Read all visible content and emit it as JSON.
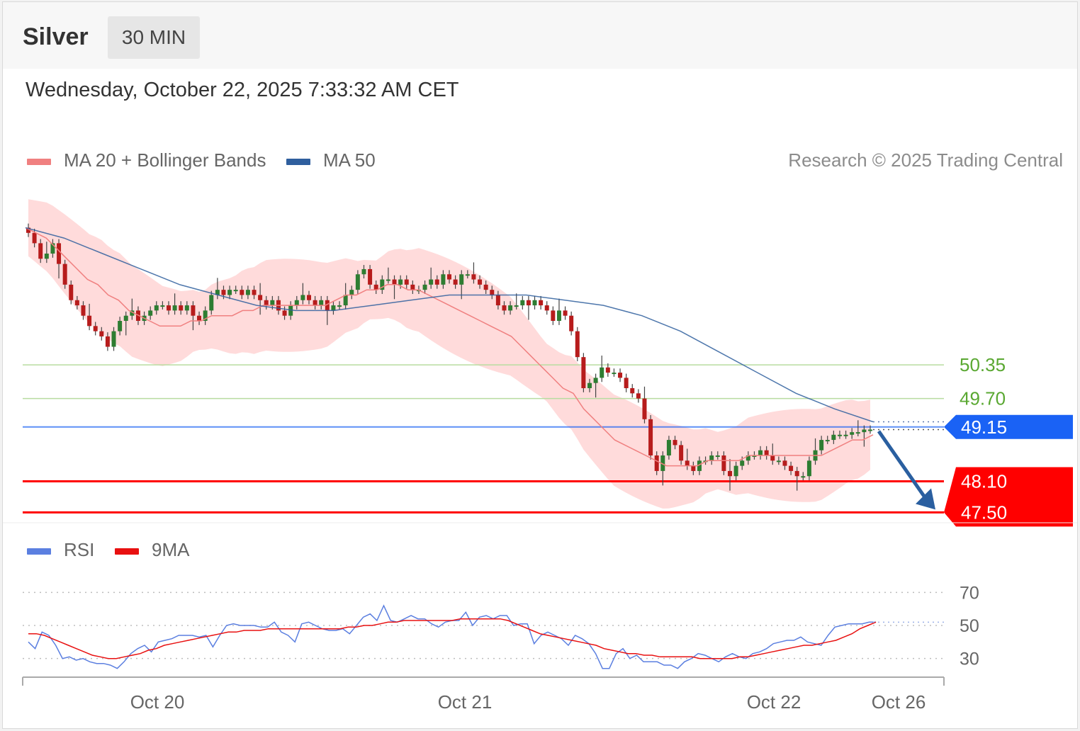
{
  "header": {
    "instrument": "Silver",
    "timeframe": "30 MIN"
  },
  "timestamp": "Wednesday, October 22, 2025 7:33:32 AM CET",
  "legend": {
    "ma20": {
      "label": "MA 20 + Bollinger Bands",
      "color": "#f08080"
    },
    "ma50": {
      "label": "MA 50",
      "color": "#2f5f9e"
    }
  },
  "copyright": "Research © 2025 Trading Central",
  "rsi_legend": {
    "rsi": {
      "label": "RSI",
      "color": "#5b7fe0"
    },
    "ma9": {
      "label": "9MA",
      "color": "#e81010"
    }
  },
  "colors": {
    "up": "#2e7d32",
    "down": "#b71c1c",
    "band": "#ffcccc",
    "pivot": "#1a62f5",
    "resistance_line": "#b8dca0",
    "resistance_text": "#5aa832",
    "support": "#ff0000",
    "arrow": "#2a5fa0"
  },
  "chart_data": [
    {
      "type": "candlestick",
      "ylim": [
        47.3,
        53.8
      ],
      "x_ticks": [
        "Oct 20",
        "Oct 21",
        "Oct 22",
        "Oct 26"
      ],
      "levels": [
        {
          "value": 50.35,
          "label": "50.35",
          "kind": "resistance"
        },
        {
          "value": 49.7,
          "label": "49.70",
          "kind": "resistance"
        },
        {
          "value": 49.15,
          "label": "49.15",
          "kind": "pivot"
        },
        {
          "value": 48.1,
          "label": "48.10",
          "kind": "support"
        },
        {
          "value": 47.5,
          "label": "47.50",
          "kind": "support"
        }
      ],
      "close_path": [
        52.9,
        52.7,
        52.4,
        52.5,
        52.7,
        52.3,
        51.9,
        51.6,
        51.5,
        51.3,
        51.1,
        51.0,
        50.9,
        50.7,
        51.0,
        51.2,
        51.3,
        51.4,
        51.2,
        51.3,
        51.4,
        51.5,
        51.5,
        51.4,
        51.5,
        51.4,
        51.5,
        51.3,
        51.2,
        51.4,
        51.7,
        51.8,
        51.7,
        51.8,
        51.8,
        51.7,
        51.8,
        51.7,
        51.6,
        51.5,
        51.6,
        51.4,
        51.3,
        51.5,
        51.6,
        51.7,
        51.6,
        51.5,
        51.6,
        51.4,
        51.5,
        51.5,
        51.7,
        51.8,
        52.1,
        52.2,
        51.9,
        51.8,
        52.0,
        52.0,
        51.9,
        52.0,
        51.9,
        51.8,
        51.8,
        51.9,
        52.0,
        51.9,
        52.1,
        52.0,
        51.9,
        52.1,
        52.1,
        52.0,
        51.9,
        51.8,
        51.7,
        51.5,
        51.4,
        51.5,
        51.5,
        51.6,
        51.5,
        51.6,
        51.5,
        51.4,
        51.2,
        51.4,
        51.3,
        51.0,
        50.5,
        49.9,
        50.0,
        50.1,
        50.3,
        50.2,
        50.2,
        50.1,
        49.9,
        49.8,
        49.7,
        49.3,
        48.6,
        48.3,
        48.6,
        48.9,
        48.8,
        48.5,
        48.4,
        48.3,
        48.5,
        48.5,
        48.6,
        48.6,
        48.3,
        48.2,
        48.4,
        48.5,
        48.6,
        48.6,
        48.7,
        48.6,
        48.5,
        48.5,
        48.4,
        48.3,
        48.2,
        48.2,
        48.5,
        48.7,
        48.9,
        48.9,
        49.0,
        49.0,
        49.0,
        49.05,
        49.05,
        49.1,
        49.1
      ],
      "ma20_path": [
        53.0,
        52.9,
        52.8,
        52.6,
        52.4,
        52.2,
        52.0,
        51.9,
        51.7,
        51.6,
        51.4,
        51.3,
        51.2,
        51.1,
        51.1,
        51.1,
        51.2,
        51.2,
        51.3,
        51.3,
        51.3,
        51.4,
        51.4,
        51.5,
        51.5,
        51.5,
        51.5,
        51.5,
        51.5,
        51.5,
        51.6,
        51.7,
        51.7,
        51.8,
        51.8,
        51.9,
        51.9,
        51.8,
        51.8,
        51.7,
        51.6,
        51.5,
        51.4,
        51.3,
        51.2,
        51.1,
        51.0,
        50.9,
        50.7,
        50.5,
        50.3,
        50.1,
        49.9,
        49.8,
        49.5,
        49.3,
        49.1,
        48.9,
        48.8,
        48.7,
        48.6,
        48.5,
        48.4,
        48.4,
        48.4,
        48.4,
        48.5,
        48.5,
        48.5,
        48.5,
        48.6,
        48.6,
        48.6,
        48.6,
        48.6,
        48.6,
        48.6,
        48.6,
        48.7,
        48.8,
        48.9,
        48.9,
        49.0
      ],
      "ma50_path": [
        53.0,
        52.9,
        52.8,
        52.6,
        52.4,
        52.2,
        52.0,
        51.9,
        51.7,
        51.6,
        51.4,
        51.3,
        51.2,
        51.1,
        51.1,
        51.1,
        51.2,
        51.2,
        51.3,
        51.3,
        51.3,
        51.4,
        51.4,
        51.5,
        51.5,
        51.5,
        51.5,
        51.5,
        51.5,
        51.5,
        51.6,
        51.7,
        51.7,
        51.8,
        51.8,
        51.9,
        51.9,
        51.8,
        51.8,
        51.7,
        51.6,
        51.5,
        51.4,
        51.3,
        51.2,
        51.1,
        51.0,
        50.9,
        50.7,
        50.5,
        50.3,
        50.1,
        49.9,
        49.8,
        49.5,
        49.3,
        49.1,
        48.9,
        48.8,
        48.7,
        48.6,
        48.5,
        48.4,
        48.4,
        48.4,
        48.4,
        48.5,
        48.5,
        48.5,
        48.5,
        48.6,
        48.6,
        48.6,
        48.6,
        48.6,
        48.6,
        48.6,
        48.6,
        48.7,
        48.8,
        48.9,
        48.9,
        49.0
      ],
      "forecast": {
        "from": 49.15,
        "to": 47.5,
        "direction": "down"
      }
    },
    {
      "type": "line",
      "name": "RSI",
      "ylim": [
        20,
        80
      ],
      "y_ticks": [
        70,
        50,
        30
      ],
      "rsi": [
        40,
        36,
        46,
        44,
        38,
        30,
        31,
        29,
        30,
        28,
        27,
        27,
        26,
        24,
        28,
        33,
        36,
        38,
        34,
        40,
        41,
        42,
        44,
        44,
        44,
        43,
        44,
        37,
        44,
        50,
        51,
        50,
        50,
        50,
        49,
        49,
        52,
        46,
        44,
        40,
        51,
        52,
        50,
        48,
        47,
        47,
        48,
        45,
        50,
        55,
        57,
        53,
        62,
        53,
        52,
        54,
        56,
        54,
        54,
        51,
        49,
        52,
        53,
        53,
        58,
        50,
        55,
        56,
        54,
        56,
        56,
        50,
        51,
        51,
        39,
        44,
        46,
        44,
        42,
        38,
        44,
        42,
        39,
        33,
        24,
        24,
        33,
        36,
        30,
        32,
        28,
        28,
        28,
        26,
        26,
        24,
        28,
        30,
        33,
        32,
        30,
        28,
        31,
        33,
        31,
        30,
        33,
        34,
        36,
        39,
        40,
        41,
        41,
        43,
        40,
        39,
        38,
        44,
        49,
        50,
        51,
        51,
        51,
        52,
        52
      ],
      "ma9": [
        45,
        45,
        44,
        42,
        40,
        38,
        36,
        34,
        32,
        31,
        30,
        30,
        31,
        32,
        33,
        35,
        36,
        38,
        39,
        40,
        41,
        42,
        43,
        44,
        45,
        46,
        46,
        47,
        47,
        47,
        48,
        48,
        48,
        48,
        48,
        48,
        48,
        48,
        48,
        48,
        49,
        49,
        50,
        50,
        51,
        52,
        52,
        53,
        53,
        53,
        53,
        53,
        53,
        53,
        54,
        54,
        54,
        54,
        54,
        54,
        53,
        51,
        49,
        47,
        45,
        44,
        43,
        42,
        41,
        40,
        39,
        38,
        36,
        35,
        34,
        33,
        33,
        32,
        32,
        31,
        31,
        31,
        31,
        31,
        30,
        30,
        30,
        30,
        30,
        31,
        31,
        32,
        33,
        34,
        35,
        36,
        37,
        38,
        38,
        39,
        40,
        41,
        43,
        45,
        48,
        50,
        52
      ]
    }
  ]
}
